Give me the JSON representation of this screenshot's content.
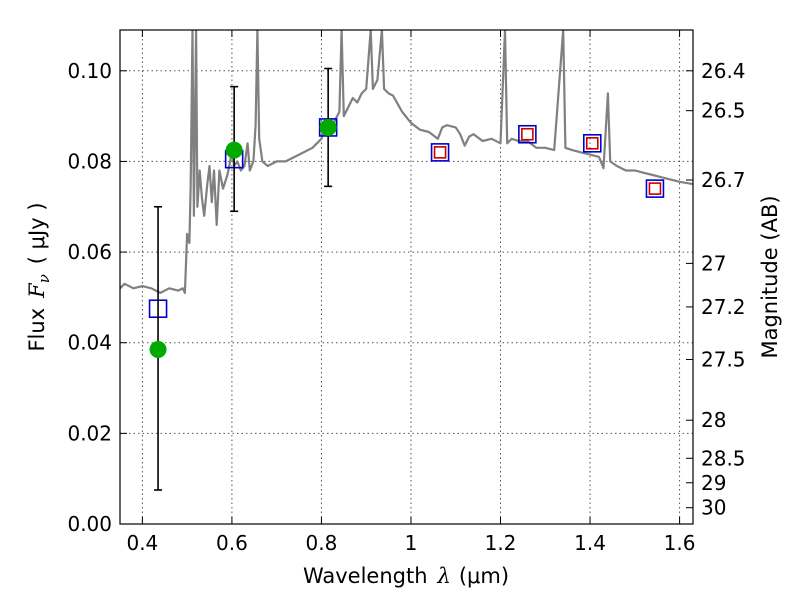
{
  "chart_data": {
    "type": "scatter",
    "xlabel": "Wavelength",
    "xlabel_symbol": "λ",
    "xlabel_unit": "(μm)",
    "ylabel": "Flux",
    "ylabel_symbol": "F",
    "ylabel_subscript": "ν",
    "ylabel_unit": "( μJy )",
    "y2label": "Magnitude (AB)",
    "xlim": [
      0.35,
      1.63
    ],
    "ylim": [
      0.0,
      0.109
    ],
    "grid": true,
    "x_ticks": [
      0.4,
      0.6,
      0.8,
      1.0,
      1.2,
      1.4,
      1.6
    ],
    "x_tick_labels": [
      "0.4",
      "0.6",
      "0.8",
      "1",
      "1.2",
      "1.4",
      "1.6"
    ],
    "y_ticks": [
      0.0,
      0.02,
      0.04,
      0.06,
      0.08,
      0.1
    ],
    "y_tick_labels": [
      "0.00",
      "0.02",
      "0.04",
      "0.06",
      "0.08",
      "0.10"
    ],
    "mag_ticks": [
      {
        "label": "26.4",
        "flux": 0.1
      },
      {
        "label": "26.5",
        "flux": 0.0912
      },
      {
        "label": "26.7",
        "flux": 0.0759
      },
      {
        "label": "27",
        "flux": 0.0575
      },
      {
        "label": "27.2",
        "flux": 0.0479
      },
      {
        "label": "27.5",
        "flux": 0.0363
      },
      {
        "label": "28",
        "flux": 0.0229
      },
      {
        "label": "28.5",
        "flux": 0.0145
      },
      {
        "label": "29",
        "flux": 0.0091
      },
      {
        "label": "30",
        "flux": 0.0036
      }
    ],
    "series": [
      {
        "name": "model spectrum",
        "kind": "line",
        "color": "#808080",
        "points": [
          [
            0.35,
            0.052
          ],
          [
            0.36,
            0.053
          ],
          [
            0.38,
            0.052
          ],
          [
            0.4,
            0.0525
          ],
          [
            0.42,
            0.052
          ],
          [
            0.44,
            0.051
          ],
          [
            0.46,
            0.052
          ],
          [
            0.48,
            0.0515
          ],
          [
            0.49,
            0.052
          ],
          [
            0.495,
            0.051
          ],
          [
            0.5,
            0.064
          ],
          [
            0.505,
            0.062
          ],
          [
            0.508,
            0.075
          ],
          [
            0.512,
            0.109
          ],
          [
            0.515,
            0.068
          ],
          [
            0.52,
            0.109
          ],
          [
            0.523,
            0.07
          ],
          [
            0.528,
            0.078
          ],
          [
            0.533,
            0.072
          ],
          [
            0.538,
            0.068
          ],
          [
            0.545,
            0.075
          ],
          [
            0.55,
            0.079
          ],
          [
            0.555,
            0.071
          ],
          [
            0.56,
            0.078
          ],
          [
            0.566,
            0.066
          ],
          [
            0.572,
            0.078
          ],
          [
            0.58,
            0.074
          ],
          [
            0.59,
            0.077
          ],
          [
            0.6,
            0.082
          ],
          [
            0.605,
            0.079
          ],
          [
            0.612,
            0.08
          ],
          [
            0.62,
            0.078
          ],
          [
            0.628,
            0.079
          ],
          [
            0.635,
            0.084
          ],
          [
            0.64,
            0.078
          ],
          [
            0.648,
            0.08
          ],
          [
            0.653,
            0.088
          ],
          [
            0.657,
            0.109
          ],
          [
            0.661,
            0.085
          ],
          [
            0.668,
            0.08
          ],
          [
            0.68,
            0.079
          ],
          [
            0.7,
            0.08
          ],
          [
            0.72,
            0.08
          ],
          [
            0.74,
            0.081
          ],
          [
            0.76,
            0.082
          ],
          [
            0.78,
            0.083
          ],
          [
            0.8,
            0.085
          ],
          [
            0.81,
            0.088
          ],
          [
            0.82,
            0.087
          ],
          [
            0.83,
            0.089
          ],
          [
            0.84,
            0.091
          ],
          [
            0.845,
            0.109
          ],
          [
            0.85,
            0.09
          ],
          [
            0.86,
            0.092
          ],
          [
            0.87,
            0.094
          ],
          [
            0.88,
            0.093
          ],
          [
            0.89,
            0.095
          ],
          [
            0.9,
            0.096
          ],
          [
            0.91,
            0.109
          ],
          [
            0.915,
            0.096
          ],
          [
            0.925,
            0.098
          ],
          [
            0.935,
            0.109
          ],
          [
            0.94,
            0.096
          ],
          [
            0.95,
            0.095
          ],
          [
            0.96,
            0.0945
          ],
          [
            0.98,
            0.091
          ],
          [
            1.0,
            0.0885
          ],
          [
            1.02,
            0.087
          ],
          [
            1.04,
            0.0865
          ],
          [
            1.06,
            0.085
          ],
          [
            1.07,
            0.0875
          ],
          [
            1.08,
            0.088
          ],
          [
            1.1,
            0.0875
          ],
          [
            1.11,
            0.086
          ],
          [
            1.12,
            0.0835
          ],
          [
            1.13,
            0.0855
          ],
          [
            1.14,
            0.086
          ],
          [
            1.16,
            0.0845
          ],
          [
            1.18,
            0.085
          ],
          [
            1.2,
            0.084
          ],
          [
            1.21,
            0.109
          ],
          [
            1.215,
            0.084
          ],
          [
            1.225,
            0.085
          ],
          [
            1.24,
            0.0845
          ],
          [
            1.26,
            0.0845
          ],
          [
            1.28,
            0.083
          ],
          [
            1.3,
            0.083
          ],
          [
            1.32,
            0.0825
          ],
          [
            1.34,
            0.109
          ],
          [
            1.345,
            0.083
          ],
          [
            1.36,
            0.0825
          ],
          [
            1.38,
            0.082
          ],
          [
            1.4,
            0.0815
          ],
          [
            1.42,
            0.081
          ],
          [
            1.43,
            0.0785
          ],
          [
            1.44,
            0.095
          ],
          [
            1.445,
            0.08
          ],
          [
            1.46,
            0.079
          ],
          [
            1.48,
            0.078
          ],
          [
            1.5,
            0.078
          ],
          [
            1.52,
            0.0775
          ],
          [
            1.54,
            0.077
          ],
          [
            1.56,
            0.0765
          ],
          [
            1.58,
            0.076
          ],
          [
            1.6,
            0.0755
          ],
          [
            1.63,
            0.075
          ]
        ]
      },
      {
        "name": "model photometry (blue squares)",
        "kind": "square",
        "color": "#0000cc",
        "points": [
          [
            0.435,
            0.0475
          ],
          [
            0.605,
            0.0805
          ],
          [
            0.815,
            0.0875
          ],
          [
            1.065,
            0.082
          ],
          [
            1.26,
            0.086
          ],
          [
            1.405,
            0.084
          ],
          [
            1.545,
            0.074
          ]
        ]
      },
      {
        "name": "NIR photometry (red squares)",
        "kind": "square",
        "color": "#cc0000",
        "points": [
          [
            1.065,
            0.082
          ],
          [
            1.26,
            0.086
          ],
          [
            1.405,
            0.084
          ],
          [
            1.545,
            0.074
          ]
        ]
      },
      {
        "name": "observed photometry (green circles)",
        "kind": "circle",
        "color": "#00aa00",
        "points": [
          [
            0.435,
            0.0385
          ],
          [
            0.605,
            0.0825
          ],
          [
            0.815,
            0.0875
          ]
        ],
        "errors": [
          [
            0.0075,
            0.07
          ],
          [
            0.069,
            0.0965
          ],
          [
            0.0745,
            0.1005
          ]
        ]
      }
    ]
  }
}
